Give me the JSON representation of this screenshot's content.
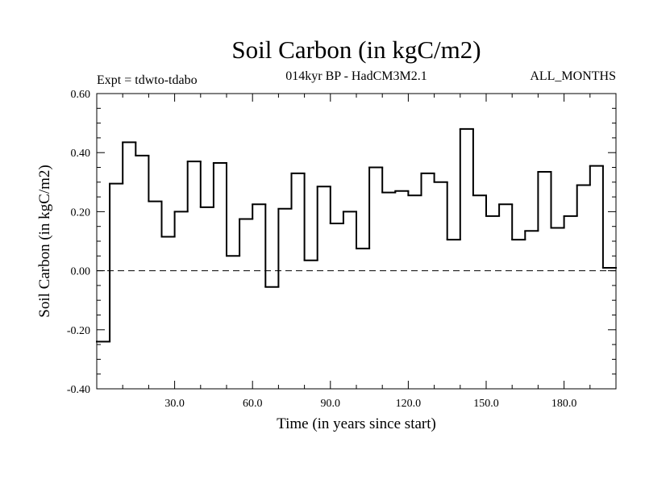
{
  "chart_data": {
    "type": "line",
    "step": true,
    "title": "Soil Carbon (in kgC/m2)",
    "subtitle_left": "Expt = tdwto-tdabo",
    "subtitle_center": "014kyr BP - HadCM3M2.1",
    "subtitle_right": "ALL_MONTHS",
    "xlabel": "Time (in years since start)",
    "ylabel": "Soil Carbon (in kgC/m2)",
    "xlim": [
      0,
      200
    ],
    "ylim": [
      -0.4,
      0.6
    ],
    "xticks": [
      30,
      60,
      90,
      120,
      150,
      180
    ],
    "xtick_labels": [
      "30.0",
      "60.0",
      "90.0",
      "120.0",
      "150.0",
      "180.0"
    ],
    "yticks": [
      -0.4,
      -0.2,
      0.0,
      0.2,
      0.4,
      0.6
    ],
    "ytick_labels": [
      "-0.40",
      "-0.20",
      "0.00",
      "0.20",
      "0.40",
      "0.60"
    ],
    "reference_line": 0.0,
    "bin_width": 5,
    "x": [
      0,
      5,
      10,
      15,
      20,
      25,
      30,
      35,
      40,
      45,
      50,
      55,
      60,
      65,
      70,
      75,
      80,
      85,
      90,
      95,
      100,
      105,
      110,
      115,
      120,
      125,
      130,
      135,
      140,
      145,
      150,
      155,
      160,
      165,
      170,
      175,
      180,
      185,
      190,
      195
    ],
    "values": [
      -0.24,
      0.295,
      0.435,
      0.39,
      0.235,
      0.115,
      0.2,
      0.37,
      0.215,
      0.365,
      0.05,
      0.175,
      0.225,
      -0.055,
      0.21,
      0.33,
      0.035,
      0.285,
      0.16,
      0.2,
      0.075,
      0.35,
      0.265,
      0.27,
      0.255,
      0.33,
      0.3,
      0.105,
      0.48,
      0.255,
      0.185,
      0.225,
      0.105,
      0.135,
      0.335,
      0.145,
      0.185,
      0.29,
      0.355,
      0.01
    ]
  }
}
